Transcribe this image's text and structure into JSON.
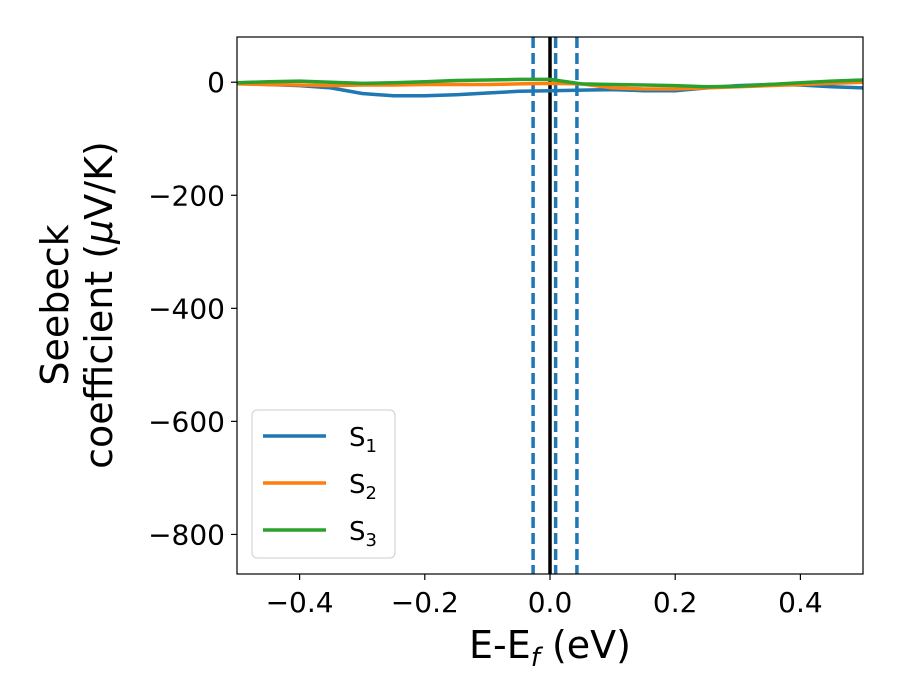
{
  "chart_data": {
    "type": "line",
    "xlabel": {
      "main": "E-E",
      "sub": "f",
      "unit": " (eV)"
    },
    "ylabel": {
      "line1": "Seebeck",
      "line2": "coefficient  (",
      "mu": "μ",
      "unit": "V/K)"
    },
    "xlim": [
      -0.5,
      0.5
    ],
    "ylim": [
      -870,
      80
    ],
    "xticks": [
      -0.4,
      -0.2,
      0.0,
      0.2,
      0.4
    ],
    "xtick_labels": [
      "−0.4",
      "−0.2",
      "0.0",
      "0.2",
      "0.4"
    ],
    "yticks": [
      0,
      -200,
      -400,
      -600,
      -800
    ],
    "ytick_labels": [
      "0",
      "−200",
      "−400",
      "−600",
      "−800"
    ],
    "grid": false,
    "legend_position": "lower-left",
    "vertical_lines": [
      {
        "x": -0.027,
        "style": "dashed",
        "color": "#1f77b4"
      },
      {
        "x": 0.009,
        "style": "dashed",
        "color": "#1f77b4"
      },
      {
        "x": 0.043,
        "style": "dashed",
        "color": "#1f77b4"
      },
      {
        "x": 0.0,
        "style": "solid",
        "color": "#000000"
      }
    ],
    "series": [
      {
        "name": "S",
        "sub": "1",
        "color": "#1f77b4",
        "x": [
          -0.5,
          -0.45,
          -0.4,
          -0.35,
          -0.3,
          -0.25,
          -0.2,
          -0.15,
          -0.1,
          -0.05,
          0.0,
          0.05,
          0.1,
          0.15,
          0.2,
          0.25,
          0.3,
          0.35,
          0.4,
          0.45,
          0.5
        ],
        "y": [
          -2,
          -4,
          -6,
          -10,
          -20,
          -24,
          -24,
          -22,
          -19,
          -16,
          -15,
          -14,
          -13,
          -15,
          -15,
          -10,
          -6,
          -4,
          -5,
          -8,
          -10
        ]
      },
      {
        "name": "S",
        "sub": "2",
        "color": "#ff7f0e",
        "x": [
          -0.5,
          -0.45,
          -0.4,
          -0.35,
          -0.3,
          -0.25,
          -0.2,
          -0.15,
          -0.1,
          -0.05,
          0.0,
          0.05,
          0.1,
          0.15,
          0.2,
          0.25,
          0.3,
          0.35,
          0.4,
          0.45,
          0.5
        ],
        "y": [
          -3,
          -4,
          -5,
          -6,
          -5,
          -5,
          -4,
          -4,
          -4,
          -3,
          -2,
          -3,
          -10,
          -12,
          -12,
          -10,
          -8,
          -6,
          -4,
          -2,
          0
        ]
      },
      {
        "name": "S",
        "sub": "3",
        "color": "#2ca02c",
        "x": [
          -0.5,
          -0.45,
          -0.4,
          -0.35,
          -0.3,
          -0.25,
          -0.2,
          -0.15,
          -0.1,
          -0.05,
          0.0,
          0.05,
          0.1,
          0.15,
          0.2,
          0.25,
          0.3,
          0.35,
          0.4,
          0.45,
          0.5
        ],
        "y": [
          -1,
          1,
          2,
          0,
          -2,
          -1,
          1,
          3,
          4,
          5,
          5,
          -3,
          -4,
          -5,
          -6,
          -8,
          -7,
          -4,
          -1,
          2,
          4
        ]
      }
    ]
  }
}
